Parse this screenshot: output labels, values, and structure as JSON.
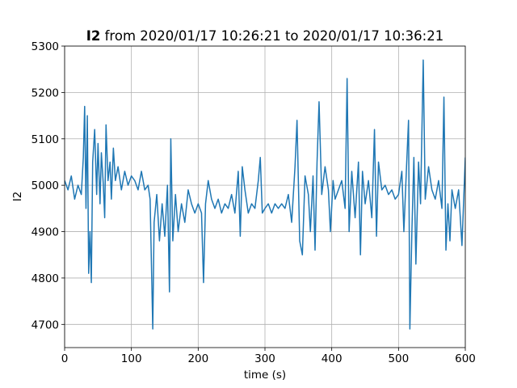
{
  "chart_data": {
    "type": "line",
    "title_name": "I2",
    "title_rest": "from 2020/01/17 10:26:21 to 2020/01/17 10:36:21",
    "xlabel": "time (s)",
    "ylabel": "I2",
    "xlim": [
      0,
      600
    ],
    "xticks": [
      0,
      100,
      200,
      300,
      400,
      500,
      600
    ],
    "ylim": [
      4650,
      5300
    ],
    "yticks": [
      4700,
      4800,
      4900,
      5000,
      5100,
      5200,
      5300
    ],
    "grid": true,
    "series": [
      {
        "color": "#1f77b4",
        "x": [
          0,
          5,
          10,
          15,
          20,
          25,
          28,
          30,
          32,
          34,
          36,
          38,
          40,
          42,
          45,
          48,
          50,
          53,
          55,
          58,
          60,
          62,
          65,
          68,
          70,
          73,
          76,
          80,
          85,
          90,
          95,
          100,
          105,
          110,
          115,
          120,
          125,
          128,
          130,
          132,
          134,
          138,
          142,
          146,
          150,
          154,
          157,
          159,
          162,
          166,
          170,
          175,
          180,
          185,
          190,
          195,
          200,
          205,
          208,
          211,
          215,
          220,
          225,
          230,
          235,
          240,
          245,
          250,
          255,
          260,
          263,
          266,
          270,
          275,
          280,
          285,
          290,
          293,
          296,
          300,
          305,
          310,
          315,
          320,
          325,
          330,
          335,
          340,
          345,
          348,
          352,
          356,
          360,
          365,
          368,
          372,
          375,
          378,
          381,
          385,
          390,
          395,
          398,
          402,
          405,
          410,
          415,
          420,
          423,
          426,
          430,
          435,
          440,
          443,
          446,
          450,
          455,
          460,
          464,
          467,
          470,
          475,
          480,
          485,
          490,
          495,
          500,
          505,
          508,
          512,
          515,
          517,
          520,
          523,
          526,
          530,
          533,
          537,
          540,
          545,
          550,
          555,
          560,
          565,
          568,
          571,
          574,
          577,
          580,
          585,
          590,
          595,
          600
        ],
        "values": [
          5010,
          4990,
          5020,
          4970,
          5000,
          4980,
          5060,
          5170,
          4950,
          5150,
          4810,
          4900,
          4790,
          5050,
          5120,
          4980,
          5090,
          4960,
          5070,
          5000,
          4930,
          5130,
          5010,
          5050,
          4970,
          5080,
          5010,
          5040,
          4990,
          5030,
          5000,
          5020,
          5010,
          4990,
          5030,
          4990,
          5000,
          4970,
          4830,
          4690,
          4920,
          4980,
          4880,
          4960,
          4890,
          5000,
          4770,
          5100,
          4880,
          4980,
          4900,
          4960,
          4920,
          4990,
          4960,
          4940,
          4960,
          4940,
          4790,
          4960,
          5010,
          4970,
          4950,
          4970,
          4940,
          4960,
          4950,
          4980,
          4940,
          5030,
          4890,
          5040,
          4990,
          4940,
          4960,
          4950,
          5010,
          5060,
          4940,
          4950,
          4960,
          4940,
          4960,
          4950,
          4960,
          4950,
          4980,
          4920,
          5040,
          5140,
          4880,
          4850,
          5020,
          4980,
          4900,
          5020,
          4860,
          5050,
          5180,
          4980,
          5040,
          4990,
          4900,
          5010,
          4970,
          4990,
          5010,
          4950,
          5230,
          4900,
          5030,
          4930,
          5050,
          4850,
          5030,
          4960,
          5010,
          4930,
          5120,
          4890,
          5050,
          4990,
          5000,
          4980,
          4990,
          4970,
          4980,
          5030,
          4900,
          5040,
          5140,
          4690,
          4900,
          5060,
          4830,
          5050,
          4960,
          5270,
          4970,
          5040,
          4990,
          4970,
          5010,
          4950,
          5190,
          4860,
          4960,
          4880,
          4990,
          4950,
          4990,
          4870,
          5060
        ]
      }
    ]
  }
}
